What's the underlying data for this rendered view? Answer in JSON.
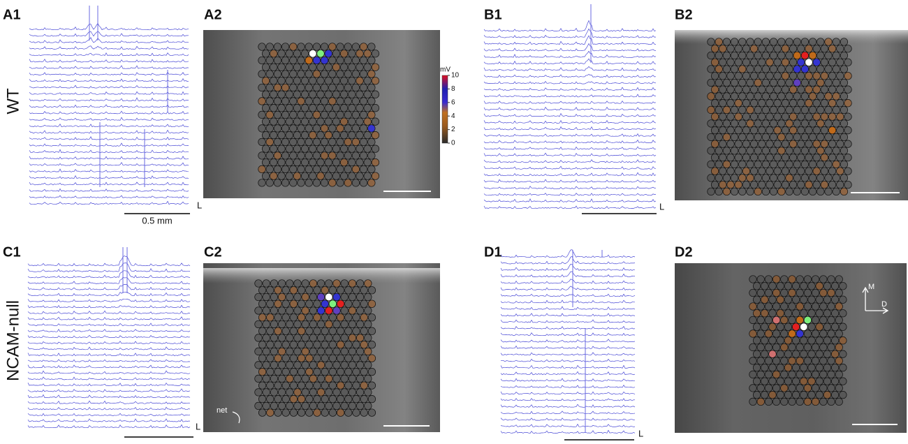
{
  "panels": [
    "A1",
    "A2",
    "B1",
    "B2",
    "C1",
    "C2",
    "D1",
    "D2"
  ],
  "row_labels": [
    "WT",
    "NCAM-null"
  ],
  "scale_bar": "0.5 mm",
  "lead_labels": [
    "L",
    "L",
    "L",
    "L"
  ],
  "colorbar": {
    "title": "mV",
    "range": [
      0,
      10
    ],
    "ticks": [
      0,
      2,
      4,
      6,
      8,
      10
    ]
  },
  "annotations": {
    "net": "net",
    "axis_m": "M",
    "axis_d": "D"
  }
}
